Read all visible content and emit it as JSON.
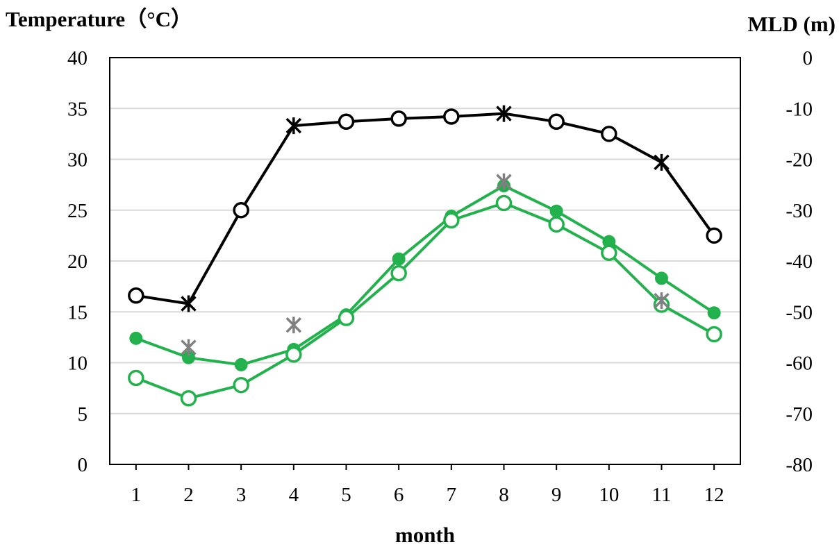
{
  "chart_data": {
    "type": "line",
    "title": "",
    "xlabel": "month",
    "ylabel_left": "Temperature（°C）",
    "ylabel_right": "MLD (m)",
    "categories": [
      "1",
      "2",
      "3",
      "4",
      "5",
      "6",
      "7",
      "8",
      "9",
      "10",
      "11",
      "12"
    ],
    "y_left": {
      "min": 0,
      "max": 40,
      "step": 5,
      "ticks": [
        "0",
        "5",
        "10",
        "15",
        "20",
        "25",
        "30",
        "35",
        "40"
      ]
    },
    "y_right": {
      "min": -80,
      "max": 0,
      "step": 10,
      "ticks": [
        "-80",
        "-70",
        "-60",
        "-50",
        "-40",
        "-30",
        "-20",
        "-10",
        "0"
      ]
    },
    "grid": true,
    "legend": "none",
    "series": [
      {
        "axis": "right",
        "color": "#000000",
        "values": [
          -46.8,
          -48.4,
          -30.0,
          -13.4,
          -12.6,
          -12.0,
          -11.6,
          -11.0,
          -12.6,
          -15.0,
          -20.6,
          -35.0
        ],
        "markers": [
          "circle",
          "star",
          "circle",
          "star",
          "circle",
          "circle",
          "circle",
          "star",
          "circle",
          "circle",
          "star",
          "circle"
        ]
      },
      {
        "axis": "left",
        "color": "#22b14c",
        "marker": "filled-circle",
        "values": [
          12.4,
          10.5,
          9.8,
          11.3,
          14.7,
          20.2,
          24.4,
          27.4,
          24.9,
          21.9,
          18.3,
          14.9
        ]
      },
      {
        "axis": "left",
        "color": "#22b14c",
        "marker": "open-circle",
        "values": [
          8.5,
          6.5,
          7.8,
          10.8,
          14.4,
          18.8,
          24.0,
          25.7,
          23.6,
          20.8,
          15.7,
          12.8
        ]
      },
      {
        "axis": "left",
        "color": "#808080",
        "marker": "star",
        "values": [
          null,
          11.5,
          null,
          13.7,
          null,
          null,
          null,
          27.8,
          null,
          null,
          16.1,
          null
        ]
      }
    ]
  }
}
